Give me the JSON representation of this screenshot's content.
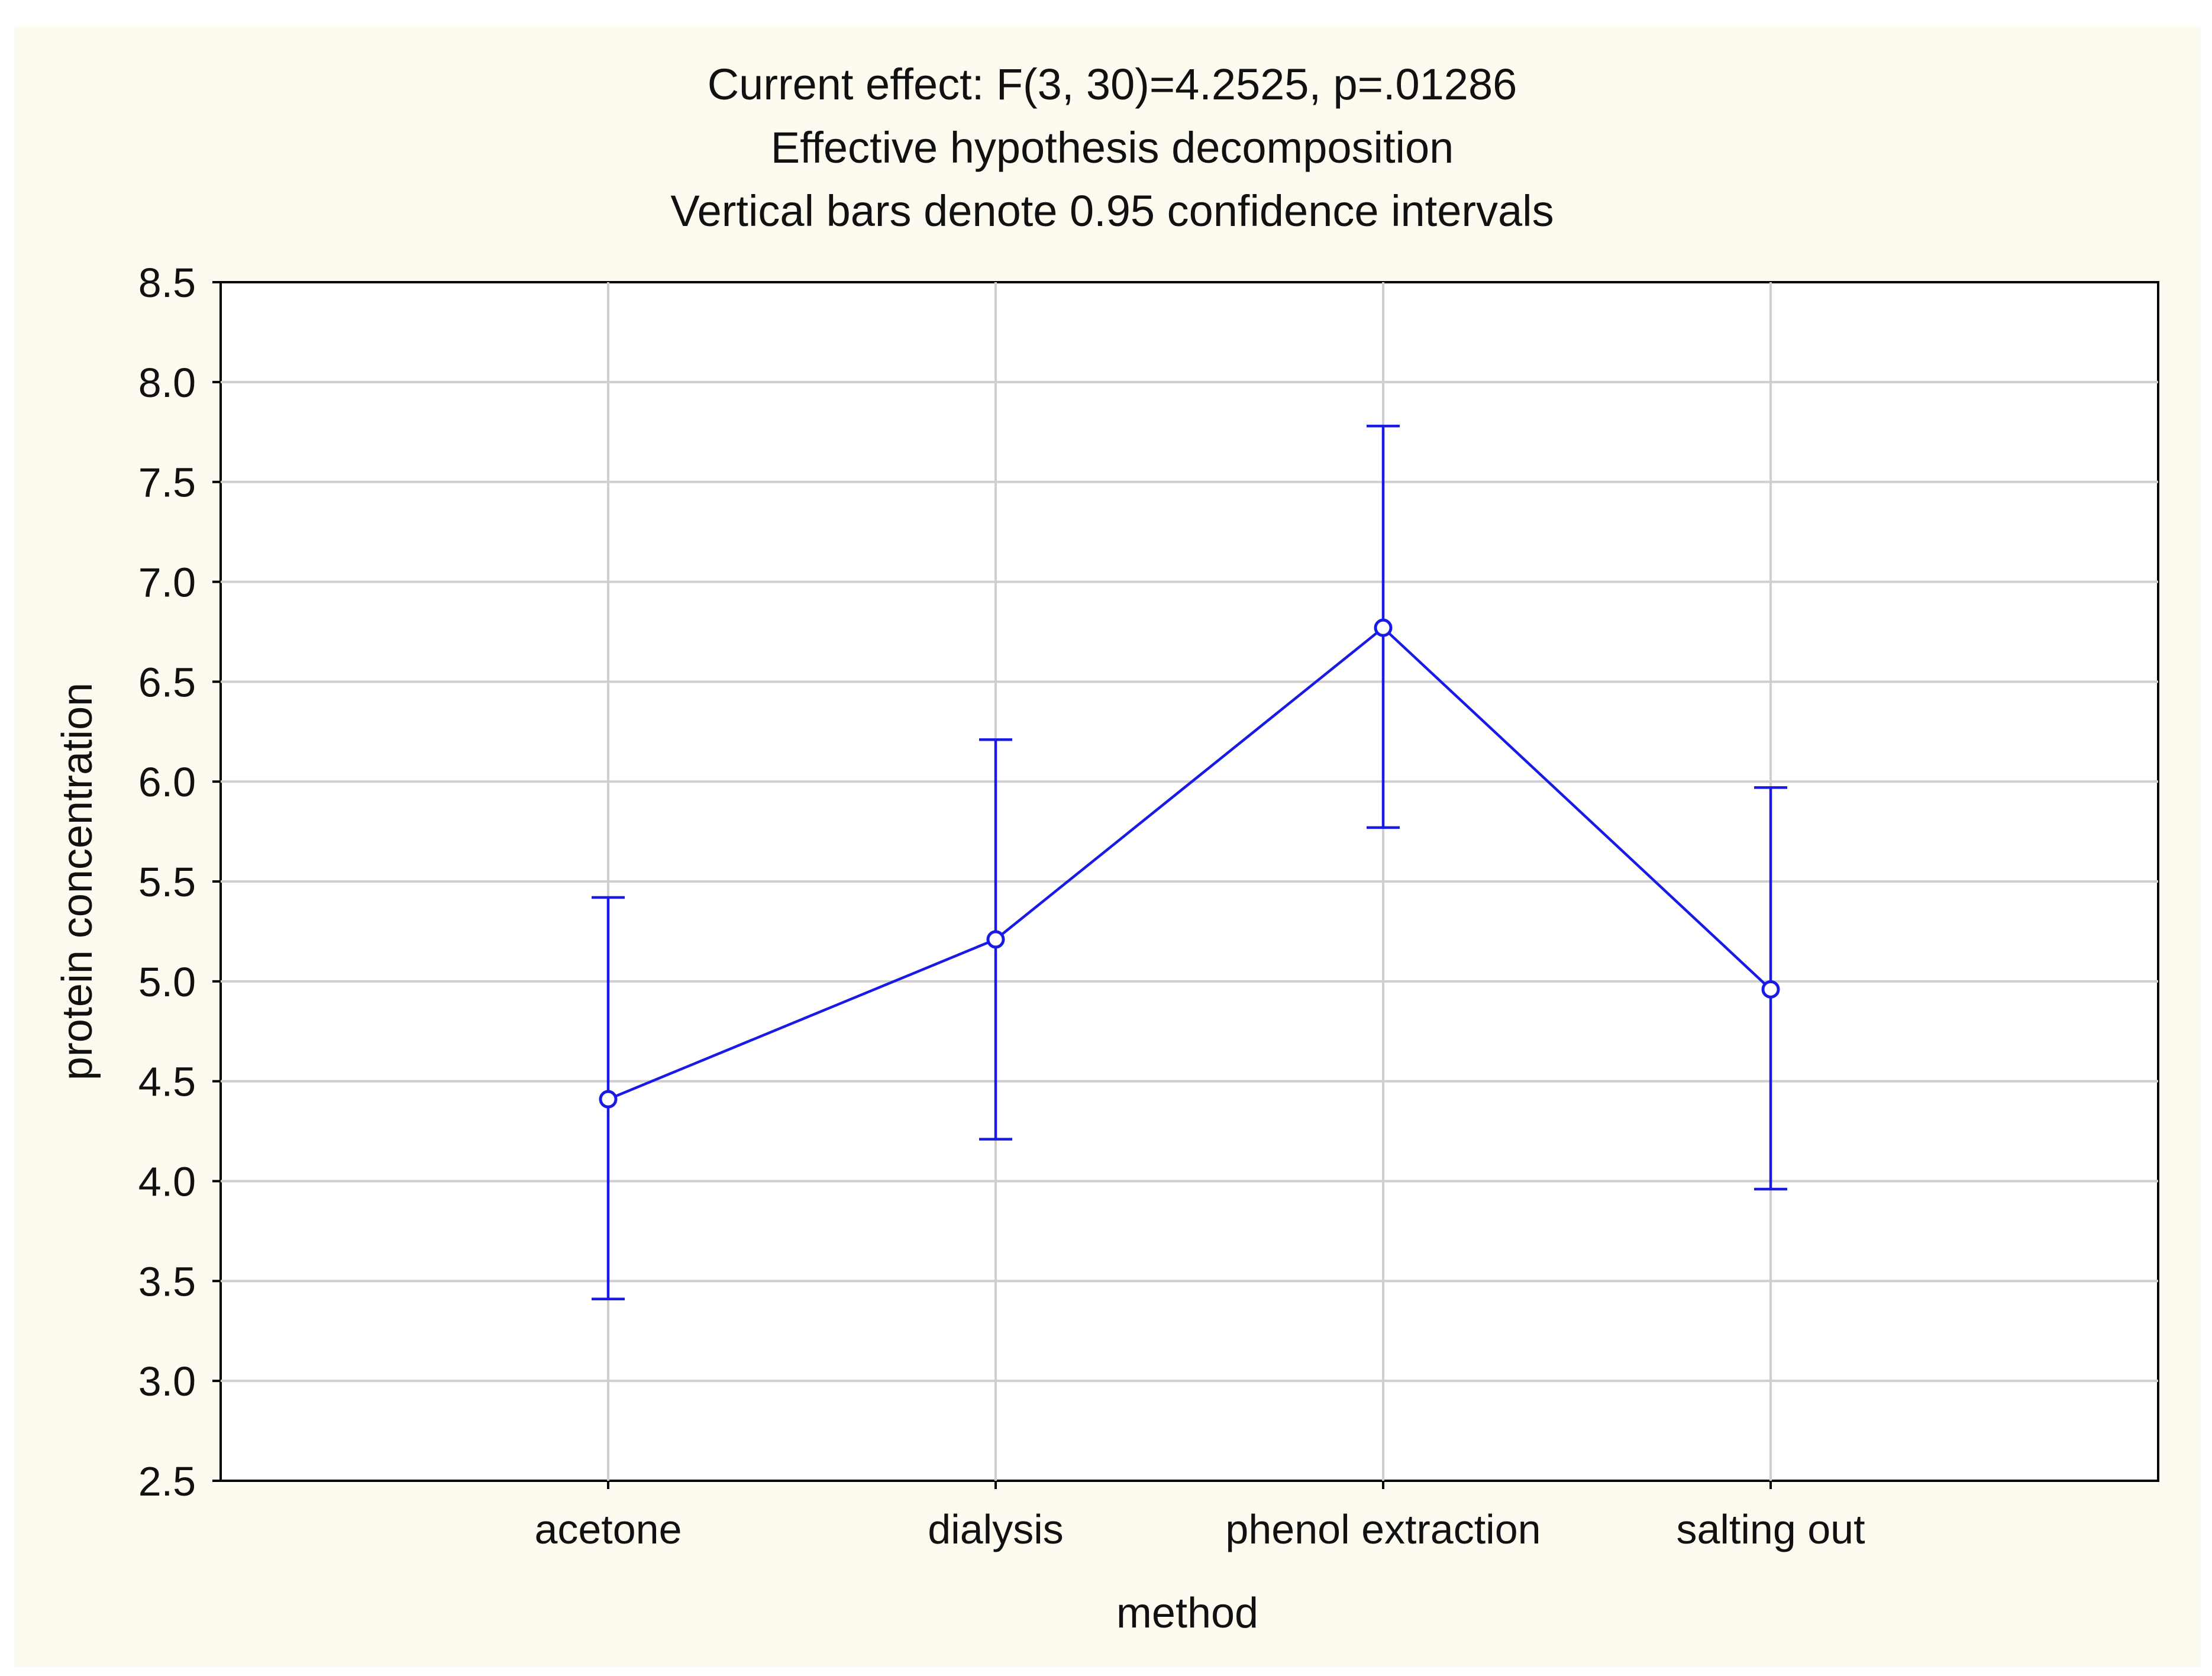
{
  "chart_data": {
    "type": "line",
    "title_lines": [
      "Current effect: F(3, 30)=4.2525, p=.01286",
      "Effective hypothesis decomposition",
      "Vertical bars denote 0.95 confidence intervals"
    ],
    "xlabel": "method",
    "ylabel": "protein concentration",
    "categories": [
      "acetone",
      "dialysis",
      "phenol extraction",
      "salting out"
    ],
    "series": [
      {
        "name": "protein concentration",
        "values": [
          4.41,
          5.21,
          6.77,
          4.96
        ],
        "ci_lower": [
          3.41,
          4.21,
          5.77,
          3.96
        ],
        "ci_upper": [
          5.42,
          6.21,
          7.78,
          5.97
        ]
      }
    ],
    "ylim": [
      2.5,
      8.5
    ],
    "yticks": [
      "2.5",
      "3.0",
      "3.5",
      "4.0",
      "4.5",
      "5.0",
      "5.5",
      "6.0",
      "6.5",
      "7.0",
      "7.5",
      "8.0",
      "8.5"
    ],
    "grid": true,
    "series_color": "#1a1ae6"
  }
}
